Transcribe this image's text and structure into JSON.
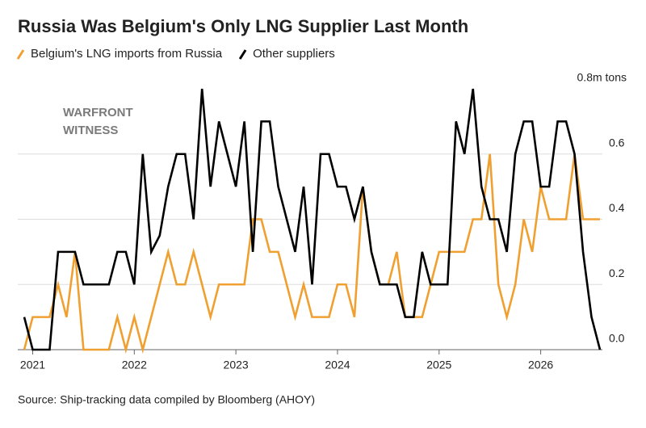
{
  "chart_data": {
    "type": "line",
    "title": "Russia Was Belgium's Only LNG Supplier Last Month",
    "source": "Source: Ship-tracking data compiled by Bloomberg (AHOY)",
    "watermark": [
      "WARFRONT",
      "WITNESS"
    ],
    "categories": [
      null,
      "2021",
      null,
      null,
      null,
      null,
      null,
      null,
      null,
      null,
      null,
      null,
      null,
      "2022",
      null,
      null,
      null,
      null,
      null,
      null,
      null,
      null,
      null,
      null,
      null,
      "2023",
      null,
      null,
      null,
      null,
      null,
      null,
      null,
      null,
      null,
      null,
      null,
      "2024",
      null,
      null,
      null,
      null,
      null,
      null,
      null,
      null,
      null,
      null,
      null,
      "2025",
      null,
      null,
      null,
      null,
      null,
      null,
      null,
      null,
      null,
      null,
      null,
      "2026",
      null,
      null,
      null,
      null,
      null,
      null,
      null
    ],
    "series": [
      {
        "name": "Belgium's LNG imports from Russia",
        "color": "#f0a030",
        "values": [
          0.0,
          0.1,
          0.1,
          0.1,
          0.2,
          0.1,
          0.3,
          0.0,
          0.0,
          0.0,
          0.0,
          0.1,
          0.0,
          0.1,
          0.0,
          0.1,
          0.2,
          0.3,
          0.2,
          0.2,
          0.3,
          0.2,
          0.1,
          0.2,
          0.2,
          0.2,
          0.2,
          0.4,
          0.4,
          0.3,
          0.3,
          0.2,
          0.1,
          0.2,
          0.1,
          0.1,
          0.1,
          0.2,
          0.2,
          0.1,
          0.5,
          0.3,
          0.2,
          0.2,
          0.3,
          0.1,
          0.1,
          0.1,
          0.2,
          0.3,
          0.3,
          0.3,
          0.3,
          0.4,
          0.4,
          0.6,
          0.2,
          0.1,
          0.2,
          0.4,
          0.3,
          0.5,
          0.4,
          0.4,
          0.4,
          0.6,
          0.4,
          0.4,
          0.4
        ]
      },
      {
        "name": "Other suppliers",
        "color": "#000000",
        "values": [
          0.1,
          0.0,
          0.0,
          0.0,
          0.3,
          0.3,
          0.3,
          0.2,
          0.2,
          0.2,
          0.2,
          0.3,
          0.3,
          0.2,
          0.6,
          0.3,
          0.35,
          0.5,
          0.6,
          0.6,
          0.4,
          0.8,
          0.5,
          0.7,
          0.6,
          0.5,
          0.7,
          0.3,
          0.7,
          0.7,
          0.5,
          0.4,
          0.3,
          0.5,
          0.2,
          0.6,
          0.6,
          0.5,
          0.5,
          0.4,
          0.5,
          0.3,
          0.2,
          0.2,
          0.2,
          0.1,
          0.1,
          0.3,
          0.2,
          0.2,
          0.2,
          0.7,
          0.6,
          0.8,
          0.5,
          0.4,
          0.4,
          0.3,
          0.6,
          0.7,
          0.7,
          0.5,
          0.5,
          0.7,
          0.7,
          0.6,
          0.3,
          0.1,
          0.0
        ]
      }
    ],
    "ylim": [
      0,
      0.8
    ],
    "yticks": [
      {
        "value": 0,
        "label": "0.0"
      },
      0.2,
      0.4,
      0.6,
      {
        "value": 0.8,
        "label": "0.8m tons"
      }
    ],
    "grid": true
  }
}
